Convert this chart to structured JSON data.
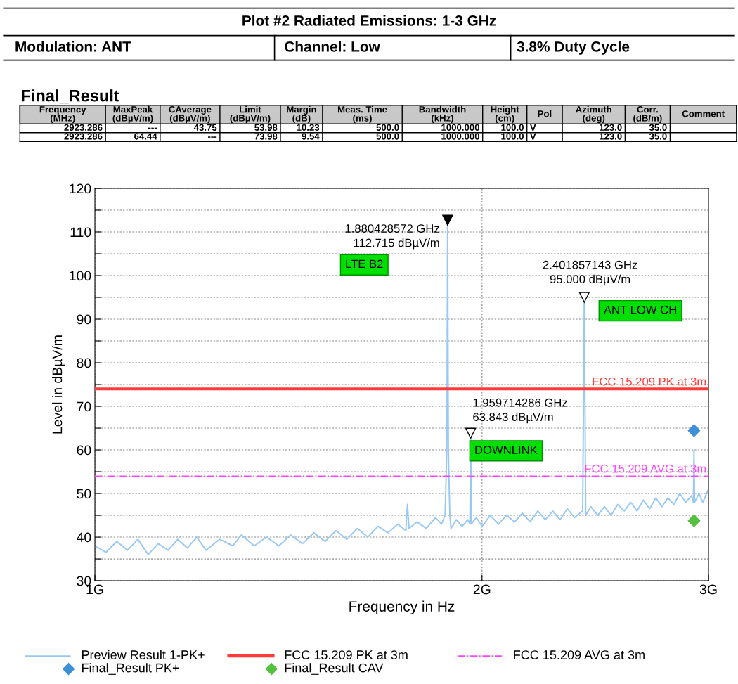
{
  "chart_data": {
    "type": "line",
    "title": "Plot #2 Radiated Emissions: 1-3 GHz",
    "xlabel": "Frequency in Hz",
    "ylabel": "Level in dBµV/m",
    "annotations": [
      "Modulation: ANT",
      "Channel: Low",
      "3.8% Duty Cycle",
      "Final_Result",
      "Frequency\n(MHz)",
      "MaxPeak\n(dBµV/m)",
      "CAverage\n(dBµV/m)",
      "Limit\n(dBµV/m)",
      "Margin\n(dB)",
      "Meas. Time\n(ms)",
      "Bandwidth\n(kHz)",
      "Height\n(cm)",
      "Pol",
      "Azimuth\n(deg)",
      "Corr.\n(dB/m)",
      "Comment",
      "2923.286",
      "---",
      "43.75",
      "53.98",
      "10.23",
      "500.0",
      "1000.000",
      "100.0",
      "V",
      "123.0",
      "35.0",
      "2923.286",
      "64.44",
      "---",
      "73.98",
      "9.54",
      "500.0",
      "1000.000",
      "100.0",
      "V",
      "123.0",
      "35.0",
      {
        "text": "1.880428572 GHz\n112.715 dBµV/m",
        "x": 1.880428572,
        "y": 112.715
      },
      {
        "text": "2.401857143 GHz\n95.000 dBµV/m",
        "x": 2.401857143,
        "y": 95.0
      },
      {
        "text": "1.959714286 GHz\n63.843 dBµV/m",
        "x": 1.959714286,
        "y": 63.843
      },
      "LTE B2",
      "ANT LOW CH",
      "DOWNLINK"
    ],
    "log": "x",
    "xlim": [
      1,
      3
    ],
    "xticks": [
      {
        "value": 1,
        "label": "1G"
      },
      {
        "value": 2,
        "label": "2G"
      },
      {
        "value": 3,
        "label": "3G"
      }
    ],
    "ylim": [
      30,
      120
    ],
    "yticks": [
      30,
      {
        "value": 35,
        "label": null
      },
      40,
      {
        "value": 45,
        "label": null
      },
      50,
      {
        "value": 55,
        "label": null
      },
      60,
      {
        "value": 65,
        "label": null
      },
      70,
      {
        "value": 75,
        "label": null
      },
      80,
      {
        "value": 85,
        "label": null
      },
      90,
      {
        "value": 95,
        "label": null
      },
      100,
      {
        "value": 105,
        "label": null
      },
      110,
      {
        "value": 115,
        "label": null
      },
      120
    ],
    "grid": true,
    "legend": "bottom",
    "ref_lines": [
      {
        "axis": "y",
        "value": 74,
        "label": "FCC 15.209 PK at 3m",
        "color": "#ff3b3b",
        "line_style": "solid"
      },
      {
        "axis": "y",
        "value": 54,
        "label": "FCC 15.209 AVG at 3m",
        "color": "#ff44ff",
        "line_style": "dashdot"
      }
    ],
    "series": [
      {
        "name": "Preview Result 1-PK+",
        "color": "#99c8f5",
        "marker": "none",
        "x": [
          1.0,
          1.02,
          1.04,
          1.06,
          1.08,
          1.1,
          1.12,
          1.14,
          1.16,
          1.18,
          1.2,
          1.22,
          1.25,
          1.28,
          1.3,
          1.33,
          1.36,
          1.39,
          1.42,
          1.45,
          1.48,
          1.51,
          1.54,
          1.57,
          1.6,
          1.63,
          1.66,
          1.69,
          1.72,
          1.745,
          1.75,
          1.755,
          1.78,
          1.81,
          1.84,
          1.86,
          1.872,
          1.878,
          1.880428572,
          1.883,
          1.888,
          1.892,
          1.91,
          1.93,
          1.95,
          1.957,
          1.959714286,
          1.962,
          1.98,
          2.0,
          2.03,
          2.06,
          2.09,
          2.12,
          2.15,
          2.18,
          2.21,
          2.24,
          2.27,
          2.3,
          2.33,
          2.36,
          2.395,
          2.401857143,
          2.408,
          2.43,
          2.46,
          2.49,
          2.52,
          2.55,
          2.58,
          2.61,
          2.64,
          2.67,
          2.7,
          2.73,
          2.76,
          2.79,
          2.82,
          2.85,
          2.88,
          2.91,
          2.92,
          2.9233,
          2.926,
          2.95,
          2.97,
          3.0
        ],
        "values": [
          38,
          36.5,
          39,
          37,
          39.5,
          36,
          38.5,
          37,
          39.5,
          37.5,
          40,
          37,
          39.5,
          38,
          40.5,
          38,
          40,
          38,
          40.5,
          38.5,
          41,
          39,
          41.5,
          39.5,
          42,
          40,
          42.5,
          41,
          43,
          41.5,
          47.5,
          42,
          43.5,
          42,
          44.5,
          43,
          45,
          60,
          112.7,
          60,
          45,
          42,
          44,
          42.5,
          44,
          43,
          63.8,
          43,
          44.5,
          42.5,
          45,
          43,
          45,
          43.5,
          45.5,
          43.5,
          46,
          44,
          46,
          44,
          46.5,
          44.5,
          46,
          95,
          45,
          47,
          45,
          47,
          45,
          47.5,
          46,
          48,
          46,
          48.5,
          46.5,
          49,
          47,
          49,
          47.5,
          50,
          48,
          49.5,
          48,
          60,
          48,
          50,
          48,
          51
        ]
      },
      {
        "name": "Final_Result PK+",
        "type": "scatter",
        "color": "#3d8fd6",
        "marker": "diamond",
        "x": [
          2.923286
        ],
        "values": [
          64.44
        ]
      },
      {
        "name": "Final_Result CAV",
        "type": "scatter",
        "color": "#55c040",
        "marker": "diamond",
        "x": [
          2.923286
        ],
        "values": [
          43.75
        ]
      }
    ]
  }
}
